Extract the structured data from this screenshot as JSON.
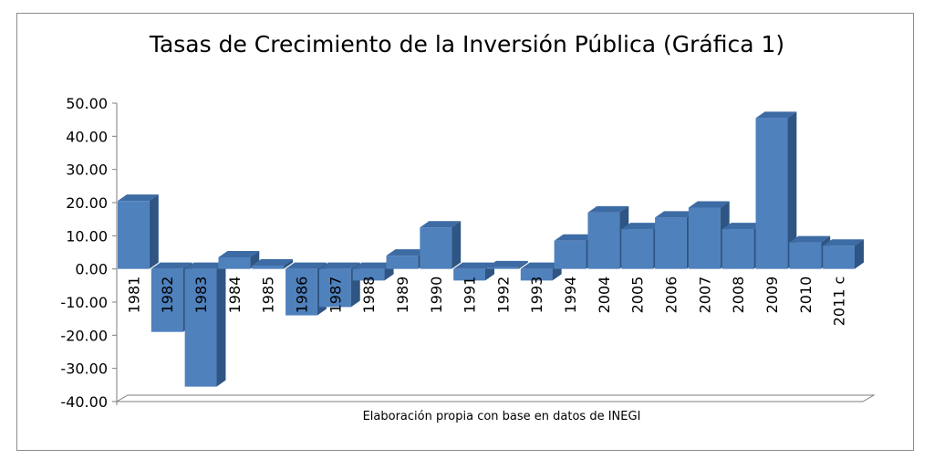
{
  "chart_data": {
    "type": "bar",
    "title": "Tasas de Crecimiento de la Inversión Pública (Gráfica 1)",
    "subtitle": "Elaboración propia con base en datos de INEGI",
    "xlabel": "",
    "ylabel": "",
    "ylim": [
      -40,
      50
    ],
    "yticks": [
      "50.00",
      "40.00",
      "30.00",
      "20.00",
      "10.00",
      "0.00",
      "-10.00",
      "-20.00",
      "-30.00",
      "-40.00"
    ],
    "categories": [
      "1981",
      "1982",
      "1983",
      "1984",
      "1985",
      "1986",
      "1987",
      "1988",
      "1989",
      "1990",
      "1991",
      "1992",
      "1993",
      "1994",
      "2004",
      "2005",
      "2006",
      "2007",
      "2008",
      "2009",
      "2010",
      "2011 c"
    ],
    "values": [
      20.5,
      -19.0,
      -35.5,
      3.5,
      1.0,
      -14.0,
      -11.5,
      -3.5,
      4.0,
      12.5,
      -3.5,
      0.5,
      -3.5,
      8.5,
      17.0,
      12.0,
      15.5,
      18.5,
      12.0,
      45.5,
      8.0,
      7.0
    ],
    "colors": {
      "bar_front": "#4f81bd",
      "bar_side": "#2e5583",
      "bar_top": "#3d6ba4",
      "axis": "#7f7f7f"
    },
    "grid": false,
    "legend": "none"
  }
}
